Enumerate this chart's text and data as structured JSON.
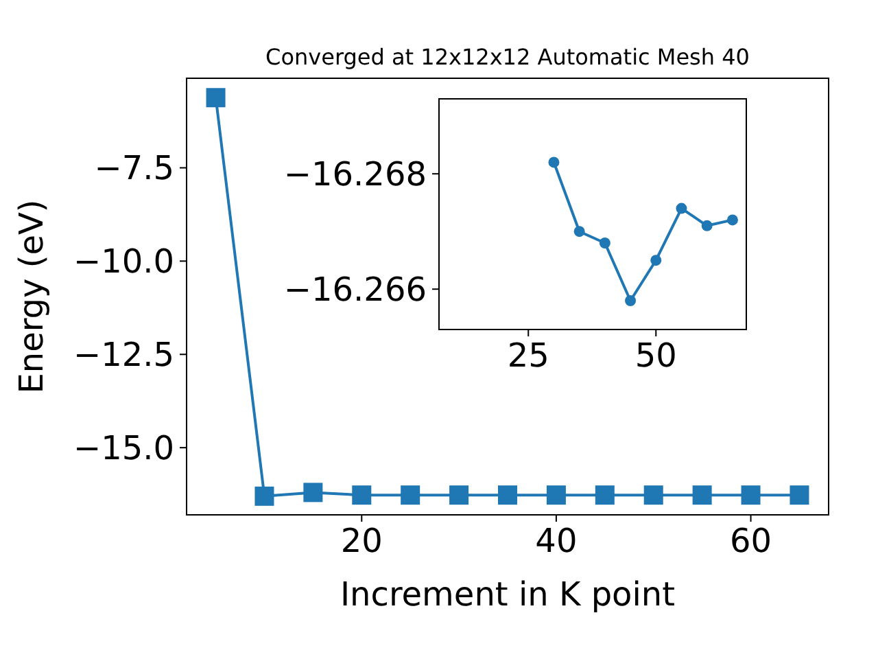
{
  "chart_data": [
    {
      "type": "line",
      "title": "Converged at 12x12x12 Automatic Mesh 40",
      "xlabel": "Increment in K point",
      "ylabel": "Energy (eV)",
      "x": [
        5,
        10,
        15,
        20,
        25,
        30,
        35,
        40,
        45,
        50,
        55,
        60,
        65
      ],
      "series": [
        {
          "color": "#1f77b4",
          "values": [
            -5.62,
            -16.3,
            -16.2,
            -16.27,
            -16.27,
            -16.27,
            -16.27,
            -16.27,
            -16.27,
            -16.27,
            -16.27,
            -16.27,
            -16.27
          ]
        }
      ],
      "xlim": [
        2,
        68
      ],
      "xticks": [
        20,
        40,
        60
      ],
      "ylim": [
        -16.8,
        -5.1
      ],
      "yticks": [
        {
          "value": -7.5,
          "label": "−7.5"
        },
        {
          "value": -10,
          "label": "−10.0"
        },
        {
          "value": -12.5,
          "label": "−12.5"
        },
        {
          "value": -15,
          "label": "−15.0"
        }
      ],
      "marker": "square",
      "grid": false
    },
    {
      "type": "line",
      "x": [
        30,
        35,
        40,
        45,
        50,
        55,
        60,
        65
      ],
      "series": [
        {
          "color": "#1f77b4",
          "values": [
            -16.2682,
            -16.267,
            -16.2668,
            -16.2658,
            -16.2665,
            -16.2674,
            -16.2671,
            -16.2672
          ]
        }
      ],
      "xlim": [
        7.5,
        67.7
      ],
      "xticks": [
        25,
        50
      ],
      "ylim": [
        -16.2653,
        -16.2693
      ],
      "yticks": [
        {
          "value": -16.268,
          "label": "−16.268"
        },
        {
          "value": -16.266,
          "label": "−16.266"
        }
      ],
      "marker": "circle",
      "grid": false
    }
  ]
}
